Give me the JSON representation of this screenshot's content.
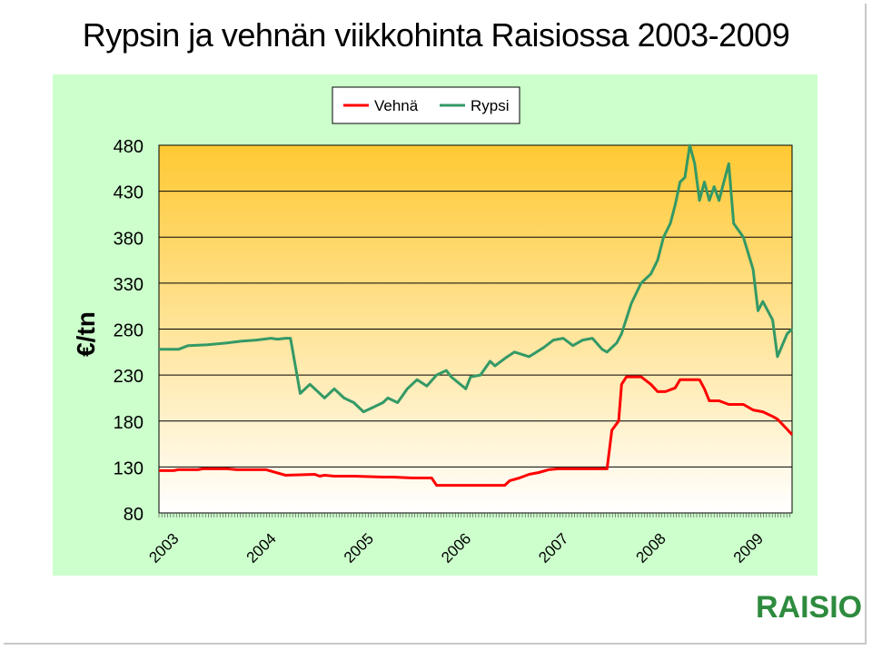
{
  "title": "Rypsin ja vehnän viikkohinta Raisiossa 2003-2009",
  "logo_text": "RAISIO",
  "colors": {
    "vehna": "#ff0000",
    "rypsi": "#339966",
    "plot_bg_top": "#ffc933",
    "plot_bg_bottom": "#ffffff",
    "chart_bg": "#ccffcc"
  },
  "chart_data": {
    "type": "line",
    "title": "Rypsin ja vehnän viikkohinta Raisiossa 2003-2009",
    "ylabel": "€/tn",
    "xlabel": "",
    "ylim": [
      80,
      480
    ],
    "yticks": [
      "480",
      "430",
      "380",
      "330",
      "280",
      "230",
      "180",
      "130",
      "80"
    ],
    "xlim": [
      2003.0,
      2009.5
    ],
    "xtick_labels": [
      "2003",
      "2004",
      "2005",
      "2006",
      "2007",
      "2008",
      "2009"
    ],
    "grid": true,
    "legend_position": "top-center",
    "series": [
      {
        "name": "Vehnä",
        "color": "#ff0000",
        "x": [
          2003.0,
          2003.15,
          2003.2,
          2003.4,
          2003.45,
          2003.7,
          2003.8,
          2004.0,
          2004.1,
          2004.3,
          2004.6,
          2004.65,
          2004.7,
          2004.8,
          2005.0,
          2005.3,
          2005.4,
          2005.6,
          2005.8,
          2005.85,
          2006.0,
          2006.2,
          2006.4,
          2006.55,
          2006.6,
          2006.7,
          2006.8,
          2006.9,
          2007.0,
          2007.1,
          2007.2,
          2007.4,
          2007.6,
          2007.65,
          2007.72,
          2007.75,
          2007.8,
          2007.95,
          2008.05,
          2008.12,
          2008.2,
          2008.3,
          2008.35,
          2008.55,
          2008.6,
          2008.65,
          2008.75,
          2008.85,
          2009.0,
          2009.1,
          2009.2,
          2009.3,
          2009.35,
          2009.45,
          2009.5
        ],
        "values": [
          126,
          126,
          127,
          127,
          128,
          128,
          127,
          127,
          127,
          121,
          122,
          120,
          121,
          120,
          120,
          119,
          119,
          118,
          118,
          110,
          110,
          110,
          110,
          110,
          115,
          118,
          122,
          124,
          127,
          128,
          128,
          128,
          128,
          170,
          180,
          220,
          228,
          228,
          220,
          212,
          212,
          216,
          225,
          225,
          215,
          202,
          202,
          198,
          198,
          192,
          190,
          185,
          182,
          171,
          165
        ]
      },
      {
        "name": "Rypsi",
        "color": "#339966",
        "x": [
          2003.0,
          2003.2,
          2003.3,
          2003.5,
          2003.7,
          2003.85,
          2004.0,
          2004.15,
          2004.22,
          2004.3,
          2004.35,
          2004.45,
          2004.55,
          2004.7,
          2004.8,
          2004.9,
          2005.0,
          2005.1,
          2005.2,
          2005.3,
          2005.35,
          2005.45,
          2005.55,
          2005.65,
          2005.75,
          2005.85,
          2005.95,
          2006.0,
          2006.15,
          2006.2,
          2006.3,
          2006.4,
          2006.45,
          2006.55,
          2006.65,
          2006.8,
          2006.95,
          2007.05,
          2007.15,
          2007.25,
          2007.35,
          2007.45,
          2007.55,
          2007.6,
          2007.7,
          2007.75,
          2007.85,
          2007.95,
          2008.05,
          2008.12,
          2008.18,
          2008.25,
          2008.3,
          2008.35,
          2008.4,
          2008.45,
          2008.5,
          2008.55,
          2008.6,
          2008.65,
          2008.7,
          2008.75,
          2008.8,
          2008.85,
          2008.9,
          2009.0,
          2009.1,
          2009.15,
          2009.2,
          2009.3,
          2009.35,
          2009.45,
          2009.5
        ],
        "values": [
          258,
          258,
          262,
          263,
          265,
          267,
          268,
          270,
          269,
          270,
          270,
          210,
          220,
          205,
          215,
          205,
          200,
          190,
          195,
          200,
          205,
          200,
          215,
          225,
          218,
          230,
          235,
          228,
          215,
          228,
          230,
          245,
          240,
          248,
          255,
          250,
          260,
          268,
          270,
          262,
          268,
          270,
          258,
          255,
          265,
          275,
          308,
          330,
          340,
          355,
          380,
          395,
          415,
          440,
          445,
          480,
          460,
          420,
          440,
          420,
          435,
          420,
          440,
          460,
          395,
          380,
          345,
          300,
          310,
          290,
          250,
          275,
          280
        ]
      }
    ]
  }
}
